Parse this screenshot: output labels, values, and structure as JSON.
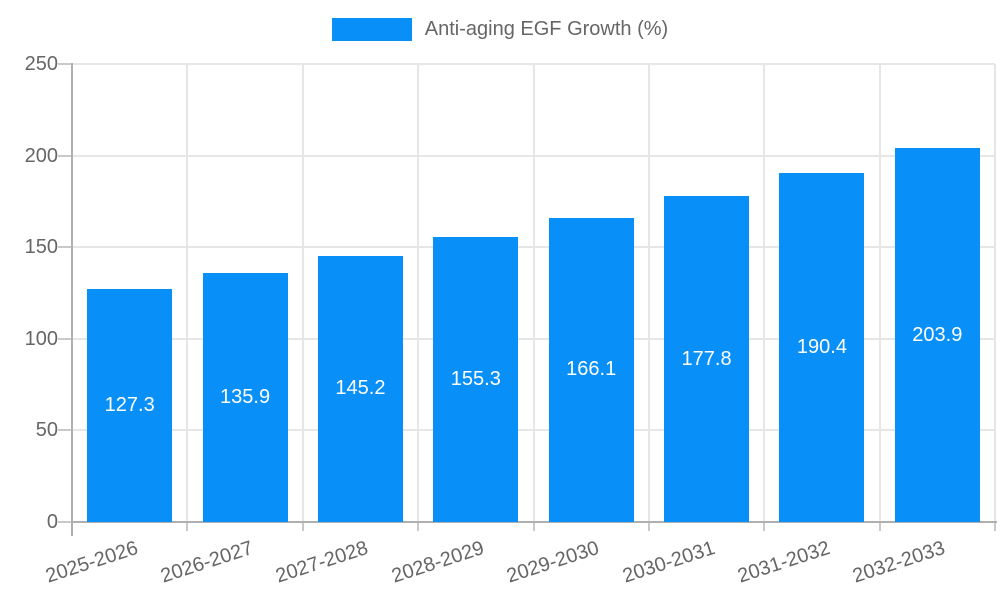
{
  "chart_data": {
    "type": "bar",
    "title": "",
    "legend_label": "Anti-aging EGF Growth (%)",
    "legend_position": "top",
    "categories": [
      "2025-2026",
      "2026-2027",
      "2027-2028",
      "2028-2029",
      "2029-2030",
      "2030-2031",
      "2031-2032",
      "2032-2033"
    ],
    "values": [
      127.3,
      135.9,
      145.2,
      155.3,
      166.1,
      177.8,
      190.4,
      203.9
    ],
    "value_labels": [
      "127.3",
      "135.9",
      "145.2",
      "155.3",
      "166.1",
      "177.8",
      "190.4",
      "203.9"
    ],
    "xlabel": "",
    "ylabel": "",
    "ylim": [
      0,
      250
    ],
    "yticks": [
      0,
      50,
      100,
      150,
      200,
      250
    ],
    "grid": true,
    "x_label_rotation_deg": -18,
    "colors": {
      "bar": "#0890f8",
      "bar_label": "#ffffff",
      "axis_text": "#666666",
      "grid_line": "#e6e6e6",
      "tick_line": "#c9c9c9",
      "axis_line": "#b0b0b0",
      "background": "#ffffff"
    }
  }
}
